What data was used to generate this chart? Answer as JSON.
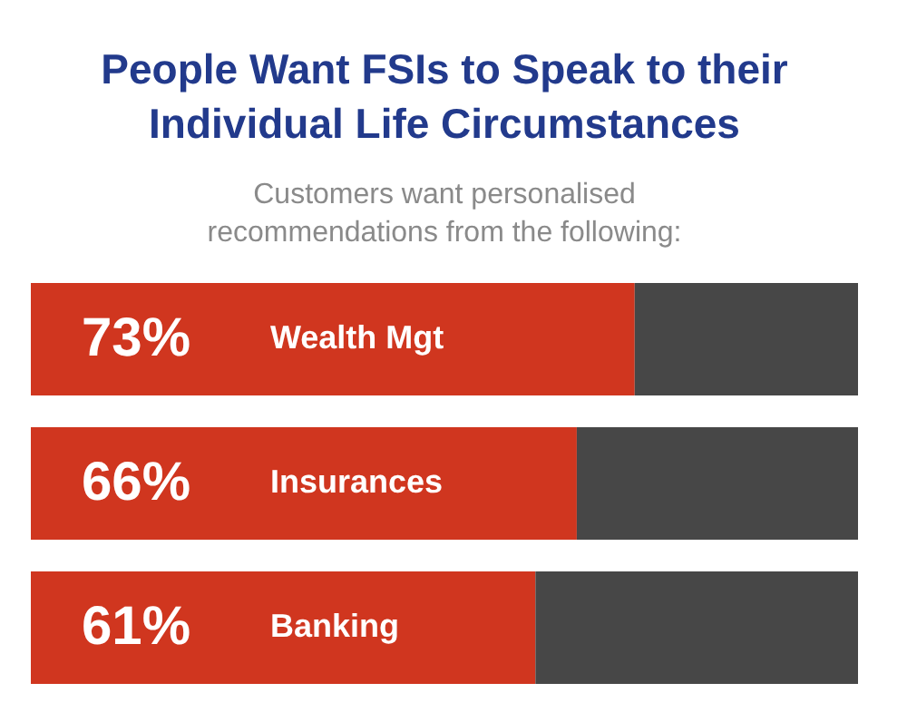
{
  "chart_data": {
    "type": "bar",
    "orientation": "horizontal",
    "stacked": true,
    "title": "People Want FSIs to Speak to their Individual Life Circumstances",
    "subtitle": "Customers want personalised recommendations from the following:",
    "categories": [
      "Wealth Mgt",
      "Insurances",
      "Banking"
    ],
    "series": [
      {
        "color": "#d0361f",
        "values": [
          73,
          66,
          61
        ],
        "value_labels": [
          "73%",
          "66%",
          "61%"
        ]
      },
      {
        "color": "#474747",
        "values": [
          27,
          34,
          39
        ]
      }
    ],
    "xlim": [
      0,
      100
    ],
    "tick_labels": false
  }
}
